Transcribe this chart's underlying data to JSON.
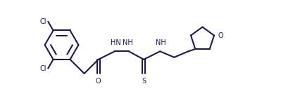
{
  "bg_color": "#ffffff",
  "line_color": "#1a1a50",
  "linewidth": 1.5,
  "figsize": [
    4.26,
    1.4
  ],
  "dpi": 100,
  "font_size": 7.0,
  "xlim": [
    -0.5,
    10.5
  ],
  "ylim": [
    -0.2,
    3.0
  ]
}
